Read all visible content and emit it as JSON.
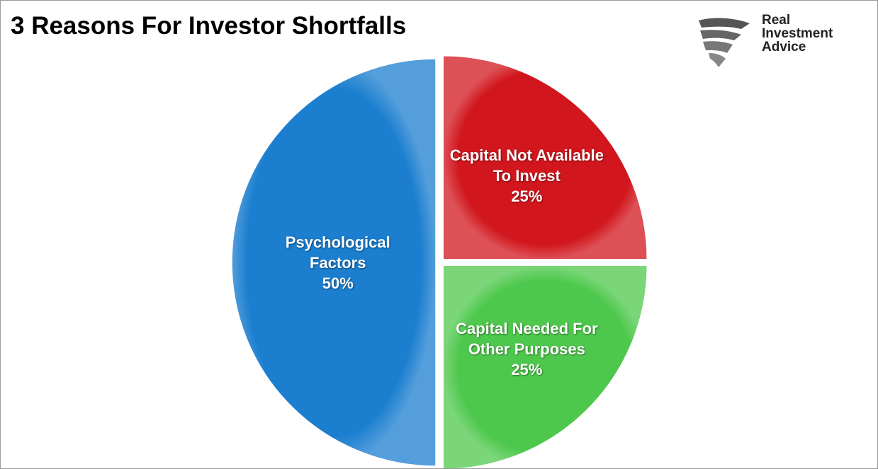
{
  "chart_data": {
    "type": "pie",
    "title": "3 Reasons For Investor Shortfalls",
    "logo_text": "Real Investment Advice",
    "categories": [
      "Psychological Factors",
      "Capital Not Available To Invest",
      "Capital Needed For Other Purposes"
    ],
    "values": [
      50,
      25,
      25
    ],
    "value_labels": [
      "50%",
      "25%",
      "25%"
    ],
    "colors": [
      "#1b7ecf",
      "#d1161d",
      "#4ec84c"
    ]
  }
}
